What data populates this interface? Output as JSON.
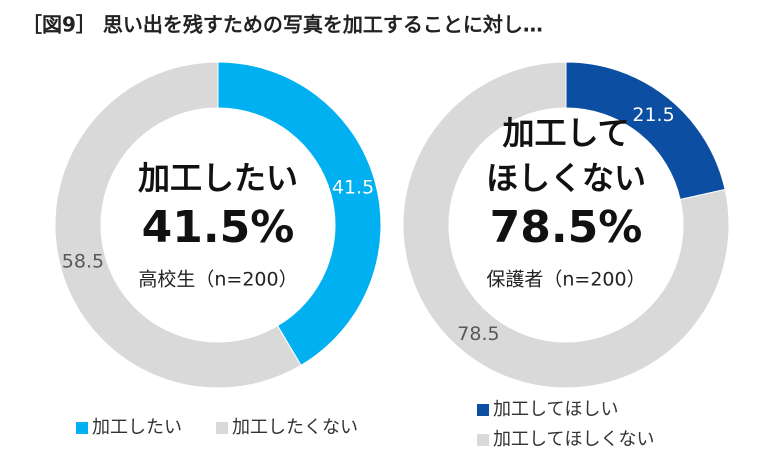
{
  "title": "［図9］ 思い出を残すための写真を加工することに対し…",
  "chart_data": [
    {
      "type": "donut",
      "categories": [
        "加工したい",
        "加工したくない"
      ],
      "values": [
        41.5,
        58.5
      ],
      "colors": [
        "#00b0f0",
        "#d9d9d9"
      ],
      "label_colors": [
        "#ffffff",
        "#595959"
      ],
      "center_label": [
        "加工したい"
      ],
      "center_value": "41.5%",
      "center_note": "高校生（n=200）",
      "legend_layout": "row"
    },
    {
      "type": "donut",
      "categories": [
        "加工してほしい",
        "加工してほしくない"
      ],
      "values": [
        21.5,
        78.5
      ],
      "colors": [
        "#0b4ea2",
        "#d9d9d9"
      ],
      "label_colors": [
        "#ffffff",
        "#595959"
      ],
      "center_label": [
        "加工して",
        "ほしくない"
      ],
      "center_value": "78.5%",
      "center_note": "保護者（n=200）",
      "legend_layout": "column"
    }
  ]
}
